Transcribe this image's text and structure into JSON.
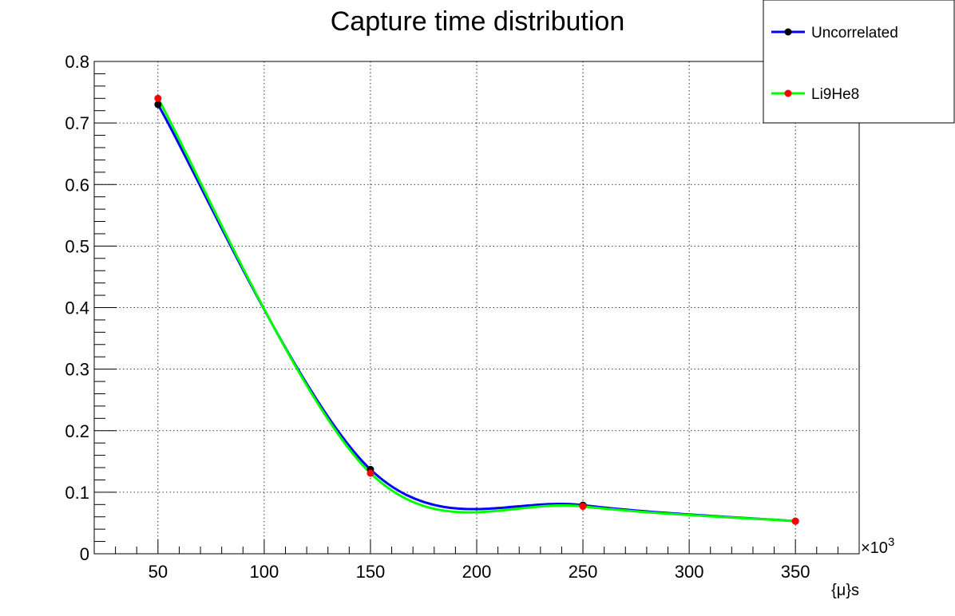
{
  "chart_data": {
    "type": "line",
    "title": "Capture time distribution",
    "xlabel": "{μ}s",
    "x_exponent_label": "×10",
    "x_exponent_power": "3",
    "xlim": [
      20,
      380
    ],
    "ylim": [
      0,
      0.8
    ],
    "x_ticks": [
      50,
      100,
      150,
      200,
      250,
      300,
      350
    ],
    "x_tick_labels": [
      "50",
      "100",
      "150",
      "200",
      "250",
      "300",
      "350"
    ],
    "y_ticks": [
      0,
      0.1,
      0.2,
      0.3,
      0.4,
      0.5,
      0.6,
      0.7,
      0.8
    ],
    "y_tick_labels": [
      "0",
      "0.1",
      "0.2",
      "0.3",
      "0.4",
      "0.5",
      "0.6",
      "0.7",
      "0.8"
    ],
    "grid": true,
    "legend_position": "top-right",
    "series": [
      {
        "name": "Uncorrelated",
        "color": "#0000ff",
        "marker_color": "#000000",
        "x": [
          50,
          150,
          250,
          350
        ],
        "y": [
          0.73,
          0.137,
          0.079,
          0.053
        ]
      },
      {
        "name": "Li9He8",
        "color": "#00ff00",
        "marker_color": "#ff0000",
        "x": [
          50,
          150,
          250,
          350
        ],
        "y": [
          0.74,
          0.131,
          0.077,
          0.053
        ]
      }
    ]
  }
}
